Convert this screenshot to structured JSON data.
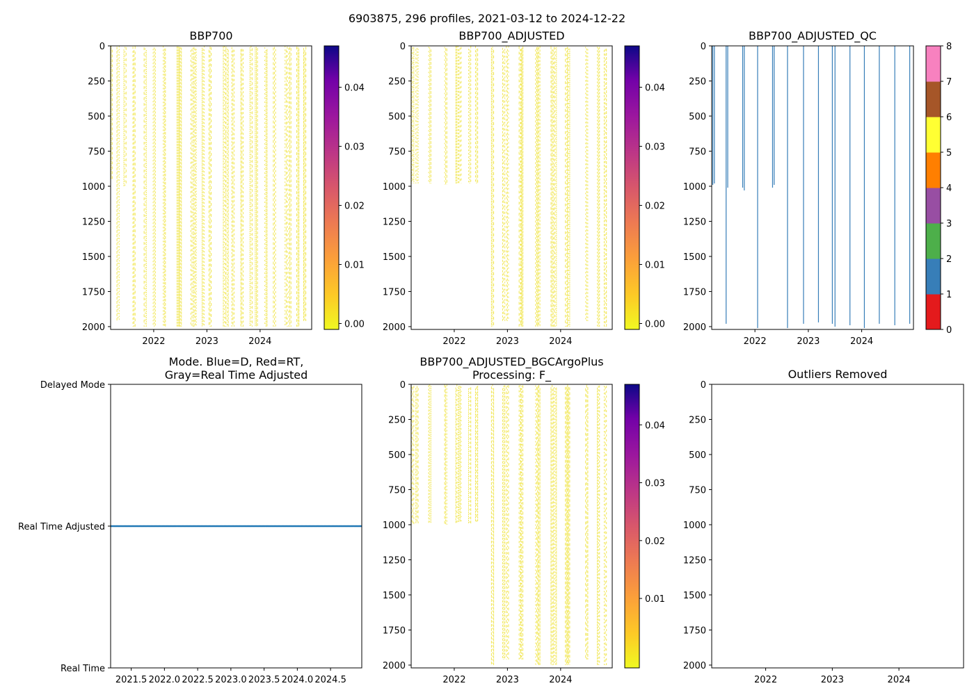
{
  "suptitle": "6903875, 296 profiles, 2021-03-12 to 2024-12-22",
  "colors": {
    "data": "#f0e442",
    "line": "#1f77b4",
    "axis": "#000000"
  },
  "chart_data": [
    {
      "id": "bbp700",
      "type": "heatmap",
      "title": "BBP700",
      "xlim": [
        2021.19,
        2024.97
      ],
      "ylim": [
        2020,
        0
      ],
      "yticks": [
        0,
        250,
        500,
        750,
        1000,
        1250,
        1500,
        1750,
        2000
      ],
      "xticks": [
        2022,
        2023,
        2024
      ],
      "xtick_labels": [
        "2022",
        "2023",
        "2024"
      ],
      "colorbar": {
        "cmap": "plasma_r",
        "range": [
          -0.001,
          0.047
        ],
        "ticks": [
          0.0,
          0.01,
          0.02,
          0.03,
          0.04
        ],
        "tick_labels": [
          "0.00",
          "0.01",
          "0.02",
          "0.03",
          "0.04"
        ]
      },
      "profile_times": [
        2021.2,
        2021.33,
        2021.46,
        2021.63,
        2021.84,
        2022.01,
        2022.2,
        2022.46,
        2022.5,
        2022.72,
        2022.78,
        2022.93,
        2023.06,
        2023.33,
        2023.38,
        2023.49,
        2023.66,
        2023.83,
        2023.93,
        2024.11,
        2024.27,
        2024.49,
        2024.56,
        2024.71,
        2024.84
      ],
      "profile_depths": [
        [
          0,
          950
        ],
        [
          0,
          1960
        ],
        [
          0,
          1000
        ],
        [
          0,
          2000
        ],
        [
          0,
          2000
        ],
        [
          0,
          2000
        ],
        [
          0,
          2000
        ],
        [
          0,
          2000
        ],
        [
          0,
          2000
        ],
        [
          0,
          2000
        ],
        [
          0,
          2000
        ],
        [
          0,
          2000
        ],
        [
          0,
          2000
        ],
        [
          0,
          2000
        ],
        [
          0,
          2000
        ],
        [
          0,
          2000
        ],
        [
          0,
          2000
        ],
        [
          0,
          2000
        ],
        [
          0,
          2000
        ],
        [
          0,
          2000
        ],
        [
          0,
          2000
        ],
        [
          0,
          2000
        ],
        [
          0,
          2000
        ],
        [
          0,
          2000
        ],
        [
          0,
          1960
        ]
      ],
      "value_range": [
        0.0,
        0.001
      ]
    },
    {
      "id": "bbp700-adjusted",
      "type": "heatmap",
      "title": "BBP700_ADJUSTED",
      "xlim": [
        2021.19,
        2024.97
      ],
      "ylim": [
        2020,
        0
      ],
      "yticks": [
        0,
        250,
        500,
        750,
        1000,
        1250,
        1500,
        1750,
        2000
      ],
      "xticks": [
        2022,
        2023,
        2024
      ],
      "xtick_labels": [
        "2022",
        "2023",
        "2024"
      ],
      "colorbar": {
        "cmap": "plasma_r",
        "range": [
          -0.001,
          0.047
        ],
        "ticks": [
          0.0,
          0.01,
          0.02,
          0.03,
          0.04
        ],
        "tick_labels": [
          "0.00",
          "0.01",
          "0.02",
          "0.03",
          "0.04"
        ]
      },
      "profile_times": [
        2021.22,
        2021.3,
        2021.54,
        2021.84,
        2022.05,
        2022.11,
        2022.29,
        2022.42,
        2022.72,
        2022.93,
        2023.0,
        2023.24,
        2023.27,
        2023.55,
        2023.59,
        2023.84,
        2023.9,
        2024.11,
        2024.15,
        2024.49,
        2024.71,
        2024.84
      ],
      "profile_depths": [
        [
          0,
          980
        ],
        [
          0,
          980
        ],
        [
          0,
          980
        ],
        [
          0,
          990
        ],
        [
          0,
          980
        ],
        [
          0,
          980
        ],
        [
          0,
          980
        ],
        [
          0,
          980
        ],
        [
          0,
          2000
        ],
        [
          0,
          1960
        ],
        [
          0,
          1960
        ],
        [
          0,
          2000
        ],
        [
          0,
          2000
        ],
        [
          0,
          2000
        ],
        [
          0,
          2000
        ],
        [
          0,
          2000
        ],
        [
          0,
          2000
        ],
        [
          0,
          2000
        ],
        [
          0,
          2000
        ],
        [
          0,
          1960
        ],
        [
          0,
          2000
        ],
        [
          0,
          2000
        ]
      ],
      "value_range": [
        0.0,
        0.001
      ]
    },
    {
      "id": "bbp700-adjusted-qc",
      "type": "heatmap",
      "title": "BBP700_ADJUSTED_QC",
      "xlim": [
        2021.19,
        2024.97
      ],
      "ylim": [
        2020,
        0
      ],
      "yticks": [
        0,
        250,
        500,
        750,
        1000,
        1250,
        1500,
        1750,
        2000
      ],
      "xticks": [
        2022,
        2023,
        2024
      ],
      "xtick_labels": [
        "2022",
        "2023",
        "2024"
      ],
      "colorbar": {
        "cmap": "Set1",
        "categories": [
          0,
          1,
          2,
          3,
          4,
          5,
          6,
          7,
          8
        ],
        "colors": [
          "#e41a1c",
          "#377eb8",
          "#4daf4a",
          "#984ea3",
          "#ff7f00",
          "#ffff33",
          "#a65628",
          "#f781bf",
          "#999999"
        ],
        "ticks": [
          0,
          1,
          2,
          3,
          4,
          5,
          6,
          7,
          8
        ],
        "tick_labels": [
          "0",
          "1",
          "2",
          "3",
          "4",
          "5",
          "6",
          "7",
          "8"
        ]
      },
      "qc_flag": 1,
      "profile_times": [
        2021.21,
        2021.24,
        2021.46,
        2021.49,
        2021.77,
        2021.8,
        2022.05,
        2022.33,
        2022.36,
        2022.61,
        2022.91,
        2023.19,
        2023.45,
        2023.5,
        2023.78,
        2024.05,
        2024.33,
        2024.62,
        2024.9
      ],
      "profile_depths": [
        [
          0,
          990
        ],
        [
          0,
          980
        ],
        [
          0,
          1980
        ],
        [
          0,
          1010
        ],
        [
          0,
          1010
        ],
        [
          0,
          1030
        ],
        [
          0,
          2010
        ],
        [
          0,
          1010
        ],
        [
          0,
          990
        ],
        [
          0,
          2010
        ],
        [
          0,
          1980
        ],
        [
          0,
          1970
        ],
        [
          0,
          1980
        ],
        [
          0,
          2000
        ],
        [
          0,
          1990
        ],
        [
          0,
          2010
        ],
        [
          0,
          1980
        ],
        [
          0,
          1990
        ],
        [
          0,
          1980
        ]
      ]
    },
    {
      "id": "mode",
      "type": "scatter",
      "title": "Mode. Blue=D, Red=RT,",
      "title_line2": "Gray=Real Time Adjusted",
      "xlim": [
        2021.19,
        2024.97
      ],
      "ytick_labels": [
        "Real Time",
        "Real Time Adjusted",
        "Delayed Mode"
      ],
      "ylim": [
        0,
        2
      ],
      "xticks": [
        2021.5,
        2022.0,
        2022.5,
        2023.0,
        2023.5,
        2024.0,
        2024.5
      ],
      "xtick_labels": [
        "2021.5",
        "2022.0",
        "2022.5",
        "2023.0",
        "2023.5",
        "2024.0",
        "2024.5"
      ],
      "series": [
        {
          "name": "Real Time Adjusted",
          "y": 1,
          "x_start": 2021.2,
          "x_end": 2024.97,
          "count": 296
        }
      ]
    },
    {
      "id": "bgcargoplus",
      "type": "heatmap",
      "title": "BBP700_ADJUSTED_BGCArgoPlus",
      "title_line2": "Processing: F_",
      "xlim": [
        2021.19,
        2024.97
      ],
      "ylim": [
        2020,
        0
      ],
      "yticks": [
        0,
        250,
        500,
        750,
        1000,
        1250,
        1500,
        1750,
        2000
      ],
      "xticks": [
        2022,
        2023,
        2024
      ],
      "xtick_labels": [
        "2022",
        "2023",
        "2024"
      ],
      "colorbar": {
        "cmap": "plasma_r",
        "range": [
          -0.002,
          0.047
        ],
        "ticks": [
          0.01,
          0.02,
          0.03,
          0.04
        ],
        "tick_labels": [
          "0.01",
          "0.02",
          "0.03",
          "0.04"
        ]
      },
      "profile_times": [
        2021.22,
        2021.3,
        2021.54,
        2021.84,
        2022.05,
        2022.11,
        2022.29,
        2022.42,
        2022.72,
        2022.93,
        2023.0,
        2023.24,
        2023.27,
        2023.55,
        2023.59,
        2023.84,
        2023.9,
        2024.11,
        2024.15,
        2024.49,
        2024.71,
        2024.84
      ],
      "profile_depths": [
        [
          0,
          1000
        ],
        [
          0,
          990
        ],
        [
          0,
          990
        ],
        [
          0,
          1000
        ],
        [
          0,
          990
        ],
        [
          0,
          980
        ],
        [
          0,
          990
        ],
        [
          0,
          980
        ],
        [
          0,
          2000
        ],
        [
          0,
          1960
        ],
        [
          0,
          1960
        ],
        [
          0,
          1960
        ],
        [
          0,
          1960
        ],
        [
          0,
          2000
        ],
        [
          0,
          2000
        ],
        [
          0,
          2000
        ],
        [
          0,
          2000
        ],
        [
          0,
          2000
        ],
        [
          0,
          2000
        ],
        [
          0,
          1960
        ],
        [
          0,
          2000
        ],
        [
          0,
          2000
        ]
      ],
      "value_range": [
        0.0,
        0.001
      ]
    },
    {
      "id": "outliers",
      "type": "scatter",
      "title": "Outliers Removed",
      "xlim": [
        2021.19,
        2024.97
      ],
      "ylim": [
        2020,
        0
      ],
      "yticks": [
        0,
        250,
        500,
        750,
        1000,
        1250,
        1500,
        1750,
        2000
      ],
      "xticks": [
        2022,
        2023,
        2024
      ],
      "xtick_labels": [
        "2022",
        "2023",
        "2024"
      ],
      "series": []
    }
  ]
}
